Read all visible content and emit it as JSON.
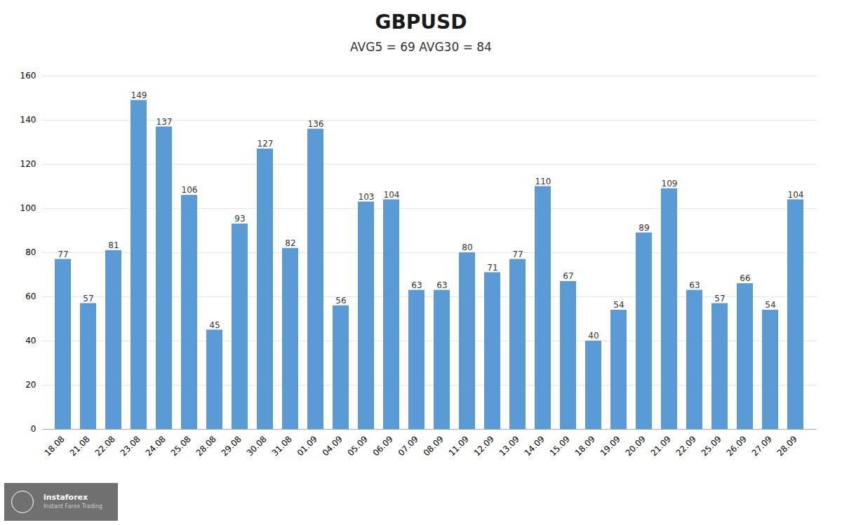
{
  "chart_data": {
    "type": "bar",
    "title": "GBPUSD",
    "subtitle": "AVG5 = 69 AVG30 = 84",
    "categories": [
      "18.08",
      "21.08",
      "22.08",
      "23.08",
      "24.08",
      "25.08",
      "28.08",
      "29.08",
      "30.08",
      "31.08",
      "01.09",
      "04.09",
      "05.09",
      "06.09",
      "07.09",
      "08.09",
      "11.09",
      "12.09",
      "13.09",
      "14.09",
      "15.09",
      "18.09",
      "19.09",
      "20.09",
      "21.09",
      "22.09",
      "25.09",
      "26.09",
      "27.09",
      "28.09"
    ],
    "values": [
      77,
      57,
      81,
      149,
      137,
      106,
      45,
      93,
      127,
      82,
      136,
      56,
      103,
      104,
      63,
      63,
      80,
      71,
      77,
      110,
      67,
      40,
      54,
      89,
      109,
      63,
      57,
      66,
      54,
      104
    ],
    "color": "#5B9BD5",
    "ylim": [
      0,
      160
    ],
    "yticks": [
      0,
      20,
      40,
      60,
      80,
      100,
      120,
      140,
      160
    ],
    "grid": true,
    "data_labels": true,
    "annotations": [
      "instaforex",
      "Instant Forex Trading"
    ]
  }
}
